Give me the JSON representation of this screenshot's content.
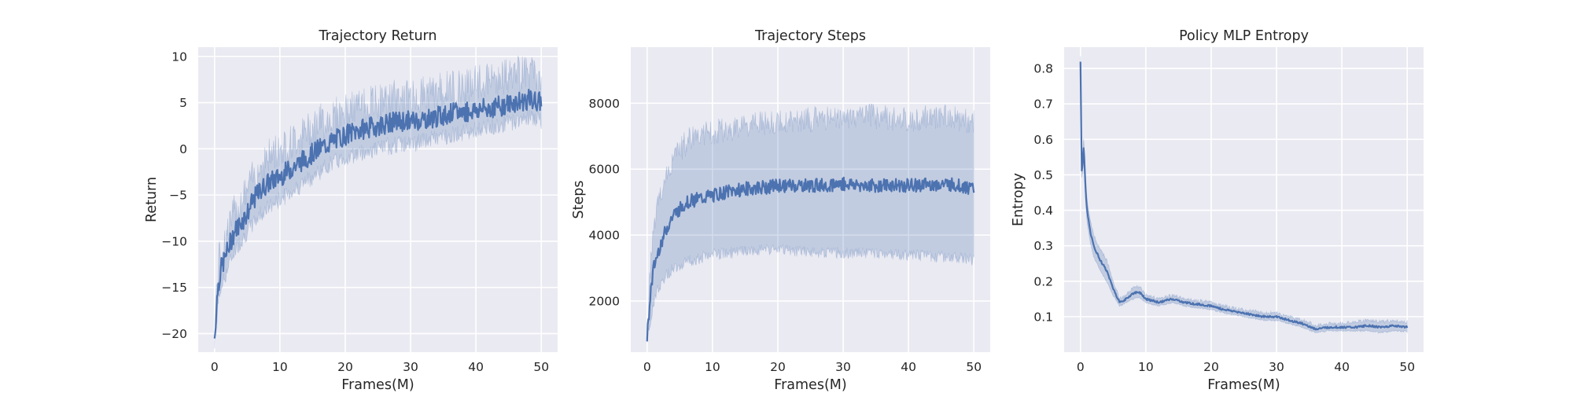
{
  "chart_data": [
    {
      "type": "line",
      "title": "Trajectory Return",
      "xlabel": "Frames(M)",
      "ylabel": "Return",
      "xlim": [
        -2.5,
        52.5
      ],
      "ylim": [
        -22,
        11
      ],
      "xticks": [
        0,
        10,
        20,
        30,
        40,
        50
      ],
      "yticks": [
        -20,
        -15,
        -10,
        -5,
        0,
        5,
        10
      ],
      "grid": true,
      "color": "#4c72b0",
      "series": [
        {
          "x": [
            0,
            0.5,
            1,
            2,
            3,
            4,
            5,
            6,
            7,
            8,
            10,
            12,
            14,
            16,
            18,
            20,
            22,
            25,
            28,
            30,
            33,
            36,
            40,
            43,
            46,
            48,
            50
          ],
          "mean": [
            -20.5,
            -15,
            -13,
            -11,
            -9,
            -8,
            -7,
            -5.5,
            -4.5,
            -3.8,
            -3,
            -2,
            -1,
            0,
            0.8,
            1.5,
            2,
            2.5,
            3,
            3,
            3.3,
            3.8,
            4.2,
            4.5,
            5,
            5.3,
            5
          ],
          "lower": [
            -21,
            -17,
            -15,
            -13,
            -11,
            -10,
            -9,
            -8,
            -7,
            -6.5,
            -5.5,
            -4.5,
            -3.5,
            -2.5,
            -1.5,
            -1,
            -0.5,
            0,
            0.5,
            0.5,
            1,
            1.5,
            2,
            2.5,
            3,
            3.5,
            3
          ],
          "upper": [
            -20,
            -13,
            -11,
            -9,
            -7,
            -6,
            -4.5,
            -3,
            -2,
            -1,
            0,
            0.8,
            1.8,
            2.8,
            3.5,
            4,
            4.5,
            5,
            5.5,
            5.5,
            6,
            6.5,
            7,
            7.5,
            8,
            8.5,
            7
          ],
          "noise": 1.6
        }
      ]
    },
    {
      "type": "line",
      "title": "Trajectory Steps",
      "xlabel": "Frames(M)",
      "ylabel": "Steps",
      "xlim": [
        -2.5,
        52.5
      ],
      "ylim": [
        450,
        9700
      ],
      "xticks": [
        0,
        10,
        20,
        30,
        40,
        50
      ],
      "yticks": [
        2000,
        4000,
        6000,
        8000
      ],
      "grid": true,
      "color": "#4c72b0",
      "series": [
        {
          "x": [
            0,
            0.5,
            1,
            2,
            3,
            4,
            5,
            6,
            7,
            8,
            10,
            12,
            15,
            18,
            20,
            25,
            30,
            35,
            40,
            45,
            48,
            50
          ],
          "mean": [
            900,
            2200,
            3000,
            3700,
            4200,
            4600,
            4800,
            5000,
            5050,
            5100,
            5200,
            5300,
            5400,
            5450,
            5500,
            5500,
            5550,
            5500,
            5500,
            5550,
            5500,
            5400
          ],
          "lower": [
            850,
            1400,
            2000,
            2500,
            2800,
            3000,
            3100,
            3200,
            3250,
            3300,
            3400,
            3450,
            3500,
            3550,
            3550,
            3500,
            3450,
            3450,
            3400,
            3350,
            3300,
            3250
          ],
          "upper": [
            950,
            3000,
            4200,
            5200,
            5800,
            6300,
            6600,
            6800,
            7000,
            7050,
            7100,
            7200,
            7300,
            7400,
            7400,
            7500,
            7600,
            7600,
            7500,
            7600,
            7500,
            7400
          ],
          "noise": 300
        }
      ]
    },
    {
      "type": "line",
      "title": "Policy MLP Entropy",
      "xlabel": "Frames(M)",
      "ylabel": "Entropy",
      "xlim": [
        -2.5,
        52.5
      ],
      "ylim": [
        0.0,
        0.86
      ],
      "xticks": [
        0,
        10,
        20,
        30,
        40,
        50
      ],
      "yticks": [
        0.1,
        0.2,
        0.3,
        0.4,
        0.5,
        0.6,
        0.7,
        0.8
      ],
      "grid": true,
      "color": "#4c72b0",
      "series": [
        {
          "x": [
            0,
            0.2,
            0.5,
            0.8,
            1,
            1.5,
            2,
            3,
            4,
            5,
            6,
            7,
            8,
            9,
            10,
            12,
            14,
            16,
            18,
            20,
            22,
            25,
            28,
            30,
            32,
            34,
            36,
            38,
            40,
            42,
            44,
            46,
            48,
            50
          ],
          "mean": [
            0.82,
            0.5,
            0.58,
            0.45,
            0.4,
            0.34,
            0.3,
            0.26,
            0.23,
            0.18,
            0.14,
            0.15,
            0.165,
            0.17,
            0.15,
            0.14,
            0.15,
            0.14,
            0.135,
            0.13,
            0.12,
            0.11,
            0.1,
            0.1,
            0.09,
            0.08,
            0.065,
            0.07,
            0.07,
            0.07,
            0.075,
            0.07,
            0.075,
            0.07
          ],
          "lower": [
            0.81,
            0.48,
            0.55,
            0.42,
            0.37,
            0.31,
            0.27,
            0.23,
            0.2,
            0.16,
            0.13,
            0.14,
            0.15,
            0.155,
            0.14,
            0.13,
            0.14,
            0.13,
            0.125,
            0.12,
            0.11,
            0.1,
            0.09,
            0.09,
            0.08,
            0.07,
            0.055,
            0.06,
            0.06,
            0.06,
            0.06,
            0.055,
            0.06,
            0.058
          ],
          "upper": [
            0.83,
            0.52,
            0.61,
            0.48,
            0.43,
            0.37,
            0.33,
            0.29,
            0.26,
            0.2,
            0.15,
            0.16,
            0.18,
            0.185,
            0.16,
            0.15,
            0.16,
            0.15,
            0.145,
            0.14,
            0.13,
            0.12,
            0.11,
            0.11,
            0.1,
            0.09,
            0.075,
            0.08,
            0.08,
            0.085,
            0.09,
            0.085,
            0.09,
            0.085
          ],
          "noise": 0.004
        }
      ]
    }
  ]
}
